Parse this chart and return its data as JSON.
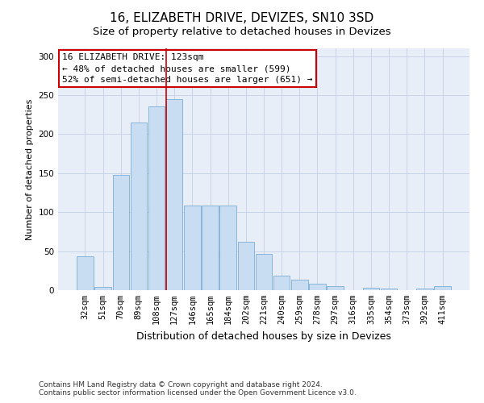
{
  "title": "16, ELIZABETH DRIVE, DEVIZES, SN10 3SD",
  "subtitle": "Size of property relative to detached houses in Devizes",
  "xlabel": "Distribution of detached houses by size in Devizes",
  "ylabel": "Number of detached properties",
  "categories": [
    "32sqm",
    "51sqm",
    "70sqm",
    "89sqm",
    "108sqm",
    "127sqm",
    "146sqm",
    "165sqm",
    "184sqm",
    "202sqm",
    "221sqm",
    "240sqm",
    "259sqm",
    "278sqm",
    "297sqm",
    "316sqm",
    "335sqm",
    "354sqm",
    "373sqm",
    "392sqm",
    "411sqm"
  ],
  "values": [
    43,
    4,
    148,
    215,
    236,
    245,
    109,
    109,
    109,
    62,
    46,
    19,
    13,
    8,
    5,
    0,
    3,
    2,
    0,
    2,
    5
  ],
  "bar_color": "#c9ddf2",
  "bar_edge_color": "#7aadd4",
  "grid_color": "#c8d4e8",
  "background_color": "#e8eef8",
  "ref_line_color": "#cc0000",
  "ref_line_x": 5,
  "annotation_text": "16 ELIZABETH DRIVE: 123sqm\n← 48% of detached houses are smaller (599)\n52% of semi-detached houses are larger (651) →",
  "annotation_box_color": "#ffffff",
  "annotation_box_edge_color": "#cc0000",
  "footer_line1": "Contains HM Land Registry data © Crown copyright and database right 2024.",
  "footer_line2": "Contains public sector information licensed under the Open Government Licence v3.0.",
  "ylim": [
    0,
    310
  ],
  "yticks": [
    0,
    50,
    100,
    150,
    200,
    250,
    300
  ],
  "title_fontsize": 11,
  "xlabel_fontsize": 9,
  "ylabel_fontsize": 8,
  "tick_fontsize": 7.5,
  "annotation_fontsize": 8,
  "footer_fontsize": 6.5
}
